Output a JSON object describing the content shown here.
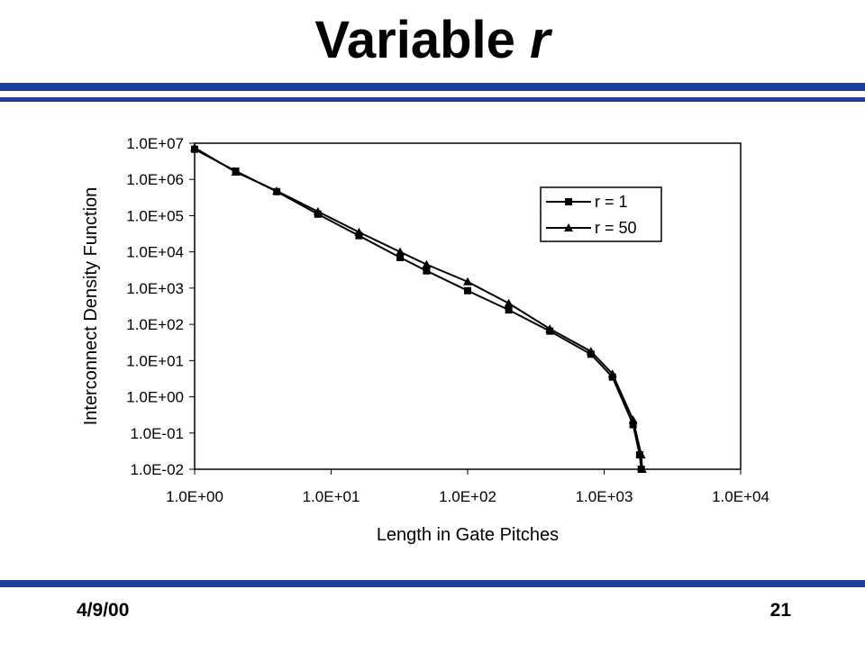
{
  "slide": {
    "title": [
      "Variable",
      "r"
    ],
    "date": "4/9/00",
    "page": "21"
  },
  "chart_data": {
    "type": "line",
    "x_label": "Length in Gate Pitches",
    "y_label": "Interconnect Density Function",
    "log_x": true,
    "log_y": true,
    "xlim": [
      1,
      10000
    ],
    "ylim": [
      0.01,
      10000000
    ],
    "xticks": [
      {
        "value": 1,
        "label": "1.0E+00"
      },
      {
        "value": 10,
        "label": "1.0E+01"
      },
      {
        "value": 100,
        "label": "1.0E+02"
      },
      {
        "value": 1000,
        "label": "1.0E+03"
      },
      {
        "value": 10000,
        "label": "1.0E+04"
      }
    ],
    "yticks": [
      {
        "value": 0.01,
        "label": "1.0E-02"
      },
      {
        "value": 0.1,
        "label": "1.0E-01"
      },
      {
        "value": 1,
        "label": "1.0E+00"
      },
      {
        "value": 10,
        "label": "1.0E+01"
      },
      {
        "value": 100,
        "label": "1.0E+02"
      },
      {
        "value": 1000,
        "label": "1.0E+03"
      },
      {
        "value": 10000,
        "label": "1.0E+04"
      },
      {
        "value": 100000,
        "label": "1.0E+05"
      },
      {
        "value": 1000000,
        "label": "1.0E+06"
      },
      {
        "value": 10000000,
        "label": "1.0E+07"
      }
    ],
    "legend": "upper right",
    "series": [
      {
        "name": "r = 1",
        "color": "#000000",
        "marker": "square",
        "x": [
          1,
          2,
          4,
          8,
          16,
          32,
          50,
          100,
          200,
          400,
          800,
          1150,
          1630,
          1820,
          1870
        ],
        "values": [
          6800000,
          1700000,
          460000,
          110000,
          28000,
          7000,
          3000,
          850,
          250,
          65,
          15,
          3.5,
          0.17,
          0.025,
          0.01
        ]
      },
      {
        "name": "r = 50",
        "color": "#000000",
        "marker": "triangle",
        "x": [
          1,
          2,
          4,
          8,
          16,
          32,
          50,
          100,
          200,
          400,
          800,
          1150,
          1630,
          1870,
          1900
        ],
        "values": [
          7500000,
          1600000,
          480000,
          130000,
          35000,
          10000,
          4500,
          1500,
          380,
          75,
          18,
          4.3,
          0.23,
          0.025,
          0.01
        ]
      }
    ]
  }
}
